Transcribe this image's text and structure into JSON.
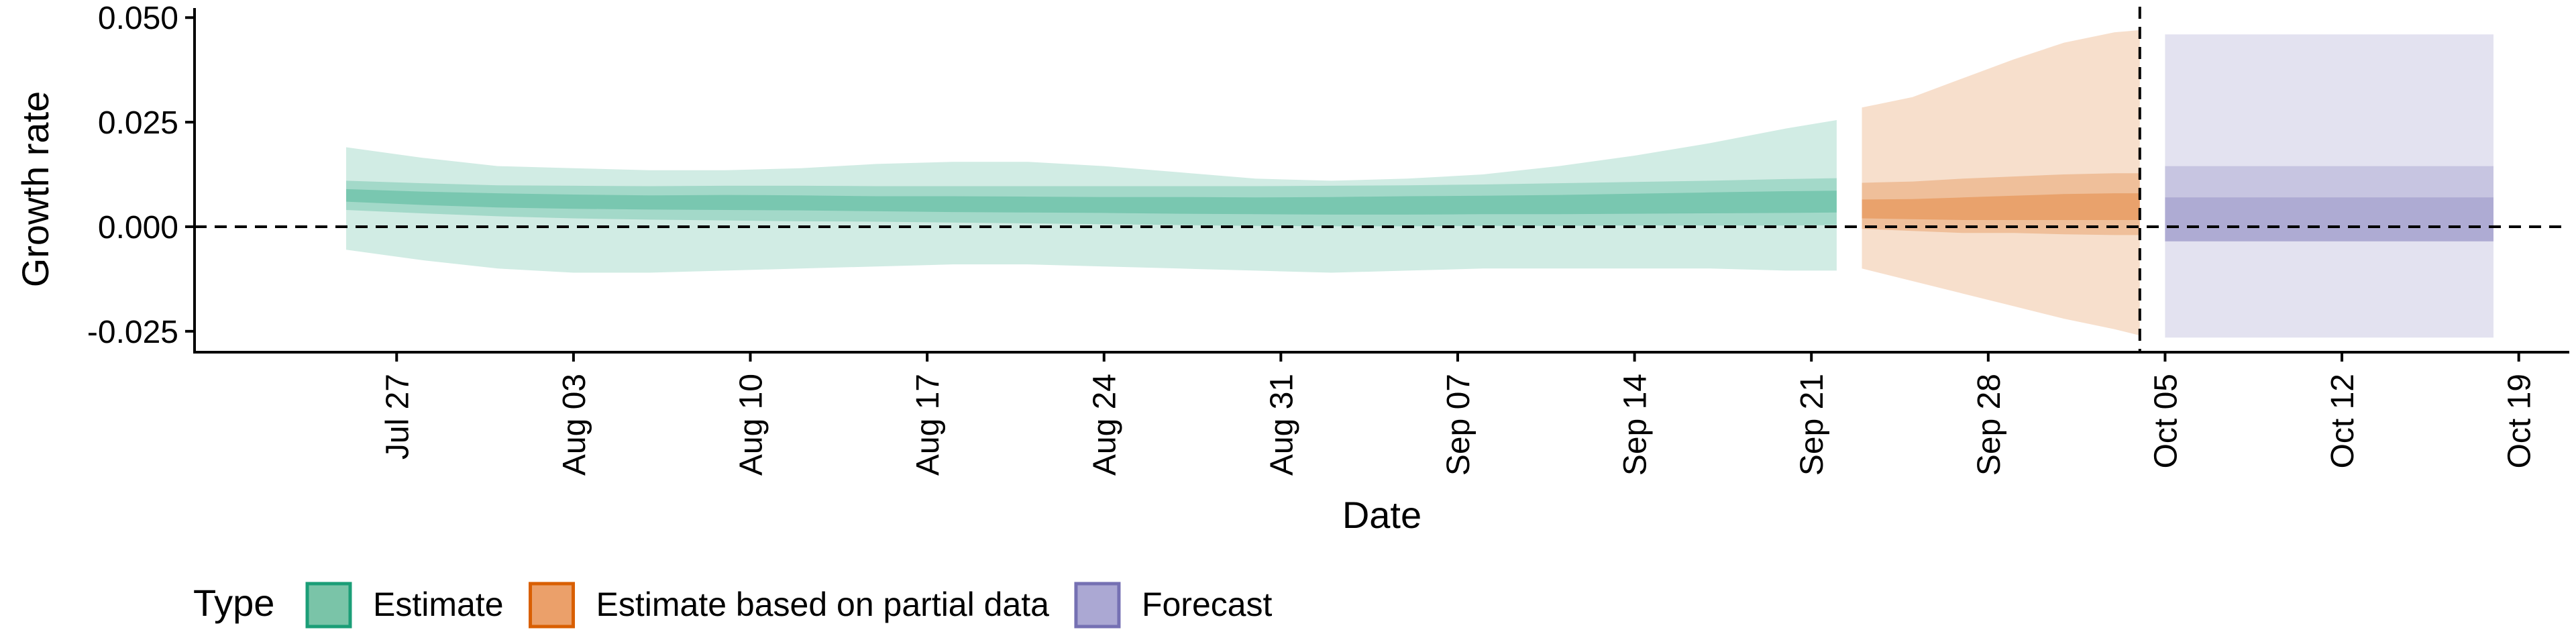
{
  "chart_data": {
    "type": "area",
    "title": "",
    "xlabel": "Date",
    "ylabel": "Growth rate",
    "x_ticks": [
      "Jul 27",
      "Aug 03",
      "Aug 10",
      "Aug 17",
      "Aug 24",
      "Aug 31",
      "Sep 07",
      "Sep 14",
      "Sep 21",
      "Sep 28",
      "Oct 05",
      "Oct 12",
      "Oct 19"
    ],
    "y_ticks": [
      "0.050",
      "0.025",
      "0.000",
      "-0.025"
    ],
    "y_tick_values": [
      0.05,
      0.025,
      0.0,
      -0.025
    ],
    "xlim": [
      "2020-07-19",
      "2020-10-21"
    ],
    "ylim": [
      -0.03,
      0.051
    ],
    "hline": 0.0,
    "vline": "2020-10-04",
    "grid": false,
    "legend": {
      "title": "Type",
      "placement": "bottom-left",
      "entries": [
        {
          "label": "Estimate",
          "fill": "#7ac4a8",
          "stroke": "#1b9e77"
        },
        {
          "label": "Estimate based on partial data",
          "fill": "#eba06a",
          "stroke": "#d95f02"
        },
        {
          "label": "Forecast",
          "fill": "#aba8d3",
          "stroke": "#7570b3"
        }
      ]
    },
    "series": [
      {
        "name": "Estimate",
        "color": "#1b9e77",
        "x": [
          "2020-07-25",
          "2020-07-28",
          "2020-07-31",
          "2020-08-03",
          "2020-08-06",
          "2020-08-09",
          "2020-08-12",
          "2020-08-15",
          "2020-08-18",
          "2020-08-21",
          "2020-08-24",
          "2020-08-27",
          "2020-08-30",
          "2020-09-02",
          "2020-09-05",
          "2020-09-08",
          "2020-09-11",
          "2020-09-14",
          "2020-09-17",
          "2020-09-20",
          "2020-09-22"
        ],
        "median": [
          0.0075,
          0.0068,
          0.0063,
          0.006,
          0.0058,
          0.0058,
          0.0057,
          0.0055,
          0.0054,
          0.0053,
          0.0052,
          0.0051,
          0.005,
          0.005,
          0.0051,
          0.0052,
          0.0053,
          0.0055,
          0.0057,
          0.0059,
          0.006
        ],
        "lower_20": [
          0.006,
          0.0052,
          0.0046,
          0.0043,
          0.0041,
          0.004,
          0.0039,
          0.0037,
          0.0035,
          0.0034,
          0.0033,
          0.0031,
          0.003,
          0.0029,
          0.0029,
          0.003,
          0.003,
          0.0031,
          0.0032,
          0.0033,
          0.0034
        ],
        "upper_20": [
          0.009,
          0.0084,
          0.008,
          0.0077,
          0.0075,
          0.0076,
          0.0075,
          0.0073,
          0.0073,
          0.0072,
          0.0071,
          0.0071,
          0.007,
          0.0071,
          0.0073,
          0.0074,
          0.0076,
          0.0079,
          0.0082,
          0.0085,
          0.0086
        ],
        "lower_50": [
          0.004,
          0.0032,
          0.0025,
          0.002,
          0.0017,
          0.0015,
          0.0013,
          0.0012,
          0.001,
          0.0008,
          0.0006,
          0.0004,
          0.0002,
          0.0001,
          0.0001,
          0.0002,
          0.0002,
          0.0003,
          0.0003,
          0.0003,
          0.0004
        ],
        "upper_50": [
          0.011,
          0.0104,
          0.0099,
          0.0098,
          0.0097,
          0.0098,
          0.0098,
          0.0097,
          0.0097,
          0.0097,
          0.0097,
          0.0097,
          0.0097,
          0.0098,
          0.0099,
          0.0101,
          0.0104,
          0.0107,
          0.011,
          0.0114,
          0.0116
        ],
        "lower_90": [
          -0.0055,
          -0.008,
          -0.01,
          -0.011,
          -0.011,
          -0.0105,
          -0.01,
          -0.0095,
          -0.009,
          -0.009,
          -0.0095,
          -0.01,
          -0.0105,
          -0.011,
          -0.0105,
          -0.01,
          -0.01,
          -0.01,
          -0.01,
          -0.0105,
          -0.0105
        ],
        "upper_90": [
          0.019,
          0.0165,
          0.0145,
          0.014,
          0.0135,
          0.0135,
          0.014,
          0.015,
          0.0155,
          0.0155,
          0.0145,
          0.013,
          0.0115,
          0.011,
          0.0115,
          0.0125,
          0.0145,
          0.017,
          0.02,
          0.0235,
          0.0255
        ]
      },
      {
        "name": "Estimate based on partial data",
        "color": "#d95f02",
        "x": [
          "2020-09-23",
          "2020-09-25",
          "2020-09-27",
          "2020-09-29",
          "2020-10-01",
          "2020-10-03",
          "2020-10-04"
        ],
        "median": [
          0.004,
          0.004,
          0.0042,
          0.0045,
          0.0047,
          0.0048,
          0.0048
        ],
        "lower_20": [
          0.002,
          0.0018,
          0.0016,
          0.0016,
          0.0016,
          0.0016,
          0.0016
        ],
        "upper_20": [
          0.0065,
          0.0066,
          0.007,
          0.0074,
          0.0078,
          0.008,
          0.008
        ],
        "lower_50": [
          -0.0005,
          -0.001,
          -0.0015,
          -0.0015,
          -0.0018,
          -0.002,
          -0.002
        ],
        "upper_50": [
          0.0105,
          0.0108,
          0.0115,
          0.012,
          0.0125,
          0.0128,
          0.0128
        ],
        "lower_90": [
          -0.01,
          -0.013,
          -0.016,
          -0.019,
          -0.022,
          -0.0245,
          -0.026
        ],
        "upper_90": [
          0.0285,
          0.031,
          0.0355,
          0.04,
          0.044,
          0.0465,
          0.047
        ]
      },
      {
        "name": "Forecast",
        "color": "#7570b3",
        "x": [
          "2020-10-05",
          "2020-10-18"
        ],
        "median": [
          0.002,
          0.002
        ],
        "lower_20": [
          -0.0035,
          -0.0035
        ],
        "upper_20": [
          0.007,
          0.007
        ],
        "lower_50": [
          -0.0035,
          -0.0035
        ],
        "upper_50": [
          0.0145,
          0.0145
        ],
        "lower_90": [
          -0.0265,
          -0.0265
        ],
        "upper_90": [
          0.046,
          0.046
        ]
      }
    ]
  }
}
